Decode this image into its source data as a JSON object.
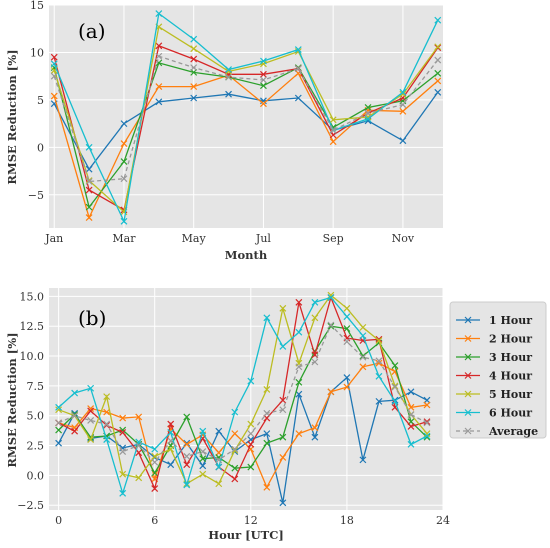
{
  "chart_data": [
    {
      "type": "line",
      "panel_label": "(a)",
      "xlabel": "Month",
      "ylabel": "RMSE Reduction [%]",
      "x": [
        1,
        2,
        3,
        4,
        5,
        6,
        7,
        8,
        9,
        10,
        11,
        12
      ],
      "xticks": [
        1,
        3,
        5,
        7,
        9,
        11
      ],
      "xtick_labels": [
        "Jan",
        "Mar",
        "May",
        "Jul",
        "Sep",
        "Nov"
      ],
      "yticks": [
        -5,
        0,
        5,
        10,
        15
      ],
      "ytick_labels": [
        "−5",
        "0",
        "5",
        "10",
        "15"
      ],
      "xlim": [
        0.85,
        12.15
      ],
      "ylim": [
        -8.5,
        15
      ],
      "grid": true,
      "series": [
        {
          "name": "1 Hour",
          "color": "#1f77b4",
          "values": [
            4.6,
            -2.3,
            2.5,
            4.8,
            5.2,
            5.6,
            4.9,
            5.2,
            1.8,
            2.8,
            0.7,
            5.8
          ]
        },
        {
          "name": "2 Hour",
          "color": "#ff7f0e",
          "values": [
            5.4,
            -7.4,
            0.4,
            6.4,
            6.4,
            7.6,
            4.6,
            7.8,
            0.6,
            3.9,
            3.8,
            7.0
          ]
        },
        {
          "name": "3 Hour",
          "color": "#2ca02c",
          "values": [
            8.4,
            -6.3,
            -1.5,
            8.9,
            7.9,
            7.4,
            6.5,
            8.4,
            2.1,
            4.2,
            4.9,
            7.8
          ]
        },
        {
          "name": "4 Hour",
          "color": "#d62728",
          "values": [
            9.5,
            -4.5,
            -6.6,
            10.7,
            9.3,
            7.7,
            7.7,
            8.3,
            1.3,
            3.6,
            5.2,
            10.5
          ]
        },
        {
          "name": "5 Hour",
          "color": "#bcbd22",
          "values": [
            8.1,
            -3.5,
            -6.8,
            12.7,
            10.4,
            8.0,
            8.8,
            10.1,
            2.9,
            3.2,
            5.6,
            10.6
          ]
        },
        {
          "name": "6 Hour",
          "color": "#17becf",
          "values": [
            8.8,
            0.0,
            -7.8,
            14.1,
            11.4,
            8.2,
            9.1,
            10.3,
            1.8,
            3.0,
            5.8,
            13.4
          ]
        },
        {
          "name": "Average",
          "color": "#999999",
          "dashed": true,
          "values": [
            7.5,
            -3.6,
            -3.3,
            9.6,
            8.4,
            7.4,
            7.1,
            8.3,
            1.8,
            3.6,
            4.5,
            9.2
          ]
        }
      ]
    },
    {
      "type": "line",
      "panel_label": "(b)",
      "xlabel": "Hour [UTC]",
      "ylabel": "RMSE Reduction [%]",
      "x": [
        0,
        1,
        2,
        3,
        4,
        5,
        6,
        7,
        8,
        9,
        10,
        11,
        12,
        13,
        14,
        15,
        16,
        17,
        18,
        19,
        20,
        21,
        22,
        23
      ],
      "xticks": [
        0,
        6,
        12,
        18,
        24
      ],
      "xtick_labels": [
        "0",
        "6",
        "12",
        "18",
        "24"
      ],
      "yticks": [
        -2.5,
        0.0,
        2.5,
        5.0,
        7.5,
        10.0,
        12.5,
        15.0
      ],
      "ytick_labels": [
        "−2.5",
        "0.0",
        "2.5",
        "5.0",
        "7.5",
        "10.0",
        "12.5",
        "15.0"
      ],
      "xlim": [
        -0.6,
        24
      ],
      "ylim": [
        -2.9,
        15.7
      ],
      "grid": true,
      "legend_position": "outside-right",
      "series": [
        {
          "name": "1 Hour",
          "color": "#1f77b4",
          "values": [
            2.7,
            5.2,
            3.1,
            3.3,
            2.3,
            2.6,
            1.5,
            0.9,
            2.7,
            0.8,
            3.7,
            2.0,
            3.0,
            3.5,
            -2.3,
            6.8,
            3.2,
            7.0,
            8.2,
            1.3,
            6.2,
            6.3,
            7.0,
            6.3
          ]
        },
        {
          "name": "2 Hour",
          "color": "#ff7f0e",
          "values": [
            4.4,
            4.0,
            5.6,
            5.3,
            4.8,
            4.9,
            -0.3,
            3.9,
            2.6,
            3.4,
            1.9,
            3.5,
            2.2,
            -1.0,
            1.5,
            3.5,
            4.0,
            7.0,
            7.4,
            9.1,
            9.4,
            8.7,
            5.7,
            5.9
          ]
        },
        {
          "name": "3 Hour",
          "color": "#2ca02c",
          "values": [
            3.8,
            5.1,
            3.2,
            3.3,
            3.8,
            2.6,
            0.2,
            2.5,
            4.9,
            1.4,
            1.5,
            0.6,
            0.7,
            2.7,
            3.2,
            7.8,
            10.4,
            12.5,
            12.3,
            10.0,
            11.1,
            9.2,
            4.5,
            3.2
          ]
        },
        {
          "name": "4 Hour",
          "color": "#d62728",
          "values": [
            4.4,
            3.7,
            5.4,
            4.2,
            3.6,
            1.9,
            -1.1,
            4.3,
            0.9,
            3.1,
            0.7,
            -0.3,
            2.6,
            4.8,
            6.3,
            14.5,
            10.1,
            14.9,
            11.5,
            11.3,
            11.4,
            5.7,
            4.1,
            4.5
          ]
        },
        {
          "name": "5 Hour",
          "color": "#bcbd22",
          "values": [
            5.5,
            5.0,
            3.0,
            6.6,
            0.1,
            -0.2,
            1.6,
            2.2,
            -0.7,
            0.1,
            -0.7,
            2.1,
            4.3,
            7.2,
            14.0,
            9.4,
            13.2,
            15.1,
            14.0,
            12.4,
            11.3,
            7.5,
            5.1,
            3.5
          ]
        },
        {
          "name": "6 Hour",
          "color": "#17becf",
          "values": [
            5.7,
            6.9,
            7.3,
            3.0,
            -1.5,
            2.8,
            2.2,
            3.6,
            -0.8,
            3.7,
            0.7,
            5.3,
            7.9,
            13.2,
            10.8,
            12.0,
            14.5,
            14.9,
            13.3,
            11.7,
            8.3,
            6.2,
            2.6,
            3.3
          ]
        },
        {
          "name": "Average",
          "color": "#999999",
          "dashed": true,
          "values": [
            4.4,
            5.0,
            4.6,
            4.3,
            2.0,
            2.5,
            1.1,
            2.9,
            1.6,
            2.0,
            1.3,
            2.2,
            3.5,
            5.2,
            5.5,
            9.1,
            9.5,
            12.6,
            11.2,
            9.9,
            9.6,
            7.4,
            5.1,
            4.4
          ]
        }
      ]
    }
  ]
}
